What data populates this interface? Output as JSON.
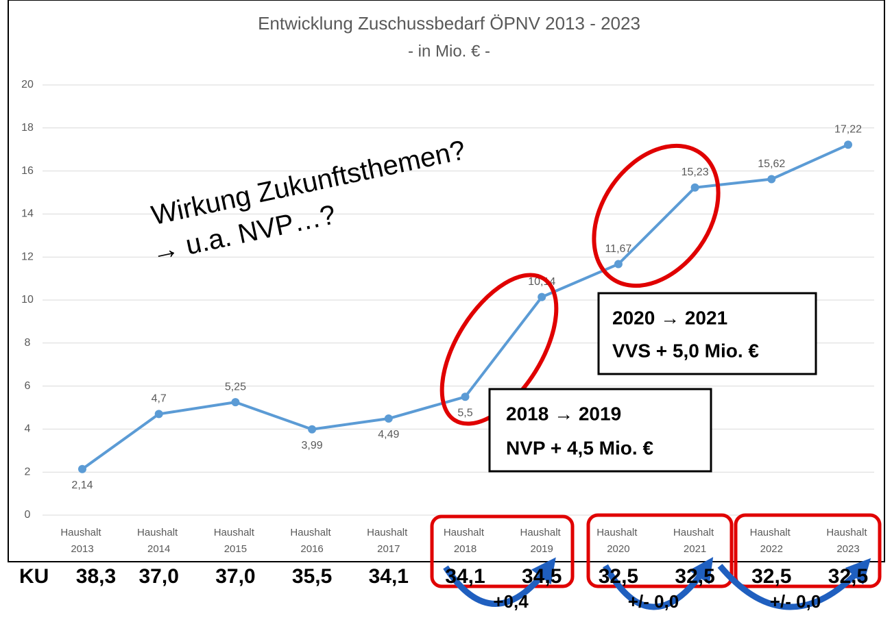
{
  "chart_data": {
    "type": "line",
    "title": "Entwicklung Zuschussbedarf ÖPNV 2013 - 2023",
    "subtitle": "- in Mio. € -",
    "categories": [
      "Haushalt 2013",
      "Haushalt 2014",
      "Haushalt 2015",
      "Haushalt 2016",
      "Haushalt 2017",
      "Haushalt 2018",
      "Haushalt 2019",
      "Haushalt 2020",
      "Haushalt 2021",
      "Haushalt 2022",
      "Haushalt 2023"
    ],
    "series": [
      {
        "name": "Zuschussbedarf",
        "color": "#5b9bd5",
        "values": [
          2.14,
          4.7,
          5.25,
          3.99,
          4.49,
          5.5,
          10.14,
          11.67,
          15.23,
          15.62,
          17.22
        ],
        "value_labels": [
          "2,14",
          "4,7",
          "5,25",
          "3,99",
          "4,49",
          "5,5",
          "10,14",
          "11,67",
          "15,23",
          "15,62",
          "17,22"
        ]
      }
    ],
    "ylim": [
      0,
      20
    ],
    "yticks": [
      0,
      2,
      4,
      6,
      8,
      10,
      12,
      14,
      16,
      18,
      20
    ],
    "grid": true,
    "annotations": {
      "question": [
        "Wirkung Zukunftsthemen?",
        "→ u.a. NVP…?"
      ],
      "box_2019": [
        "2018 → 2019",
        "NVP + 4,5 Mio. €"
      ],
      "box_2021": [
        "2020 → 2021",
        "VVS + 5,0 Mio. €"
      ],
      "ku_label": "KU",
      "ku_values": [
        "38,3",
        "37,0",
        "37,0",
        "35,5",
        "34,1",
        "34,1",
        "34,5",
        "32,5",
        "32,5",
        "32,5",
        "32,5"
      ],
      "changes": [
        "+0,4",
        "+/- 0,0",
        "+/- 0,0"
      ]
    }
  }
}
